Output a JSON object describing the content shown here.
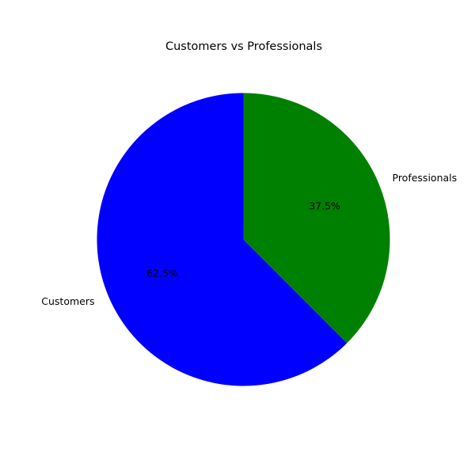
{
  "chart_data": {
    "type": "pie",
    "title": "Customers vs Professionals",
    "categories": [
      "Customers",
      "Professionals"
    ],
    "values": [
      62.5,
      37.5
    ],
    "percent_labels": [
      "62.5%",
      "37.5%"
    ],
    "colors": [
      "#0000ff",
      "#008000"
    ],
    "start_angle": "top",
    "direction": "counterclockwise",
    "legend": "none"
  }
}
